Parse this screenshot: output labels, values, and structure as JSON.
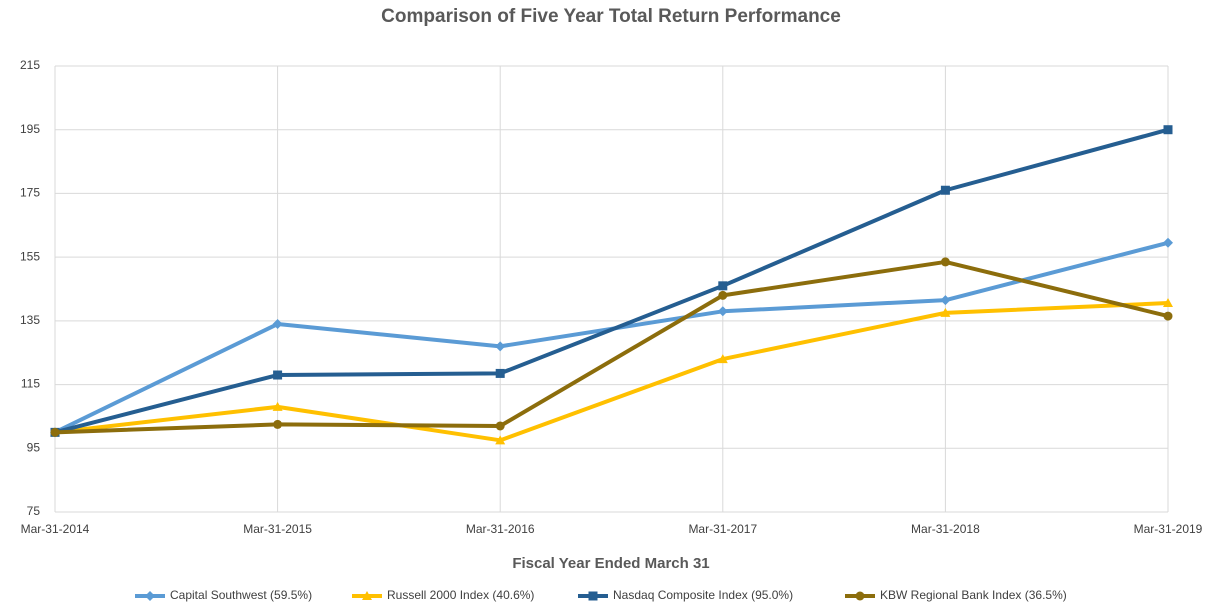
{
  "chart_data": {
    "type": "line",
    "title": "Comparison of Five Year Total Return Performance",
    "x_label": "Fiscal Year Ended March 31",
    "categories": [
      "Mar-31-2014",
      "Mar-31-2015",
      "Mar-31-2016",
      "Mar-31-2017",
      "Mar-31-2018",
      "Mar-31-2019"
    ],
    "series": [
      {
        "name": "Capital Southwest (59.5%)",
        "color": "#5b9bd5",
        "marker": "diamond",
        "values": [
          100,
          134,
          127,
          138,
          141.5,
          159.5
        ]
      },
      {
        "name": "Russell 2000 Index (40.6%)",
        "color": "#ffc000",
        "marker": "triangle",
        "values": [
          100,
          108,
          97.5,
          123,
          137.5,
          140.6
        ]
      },
      {
        "name": "Nasdaq Composite Index (95.0%)",
        "color": "#255e91",
        "marker": "square",
        "values": [
          100,
          118,
          118.5,
          146,
          176,
          195
        ]
      },
      {
        "name": "KBW Regional Bank Index (36.5%)",
        "color": "#8c6d0c",
        "marker": "circle",
        "values": [
          100,
          102.5,
          102,
          143,
          153.5,
          136.5
        ]
      }
    ],
    "ylim": [
      75,
      215
    ],
    "yticks": [
      75,
      95,
      115,
      135,
      155,
      175,
      195,
      215
    ],
    "grid": true,
    "legend": "bottom"
  }
}
